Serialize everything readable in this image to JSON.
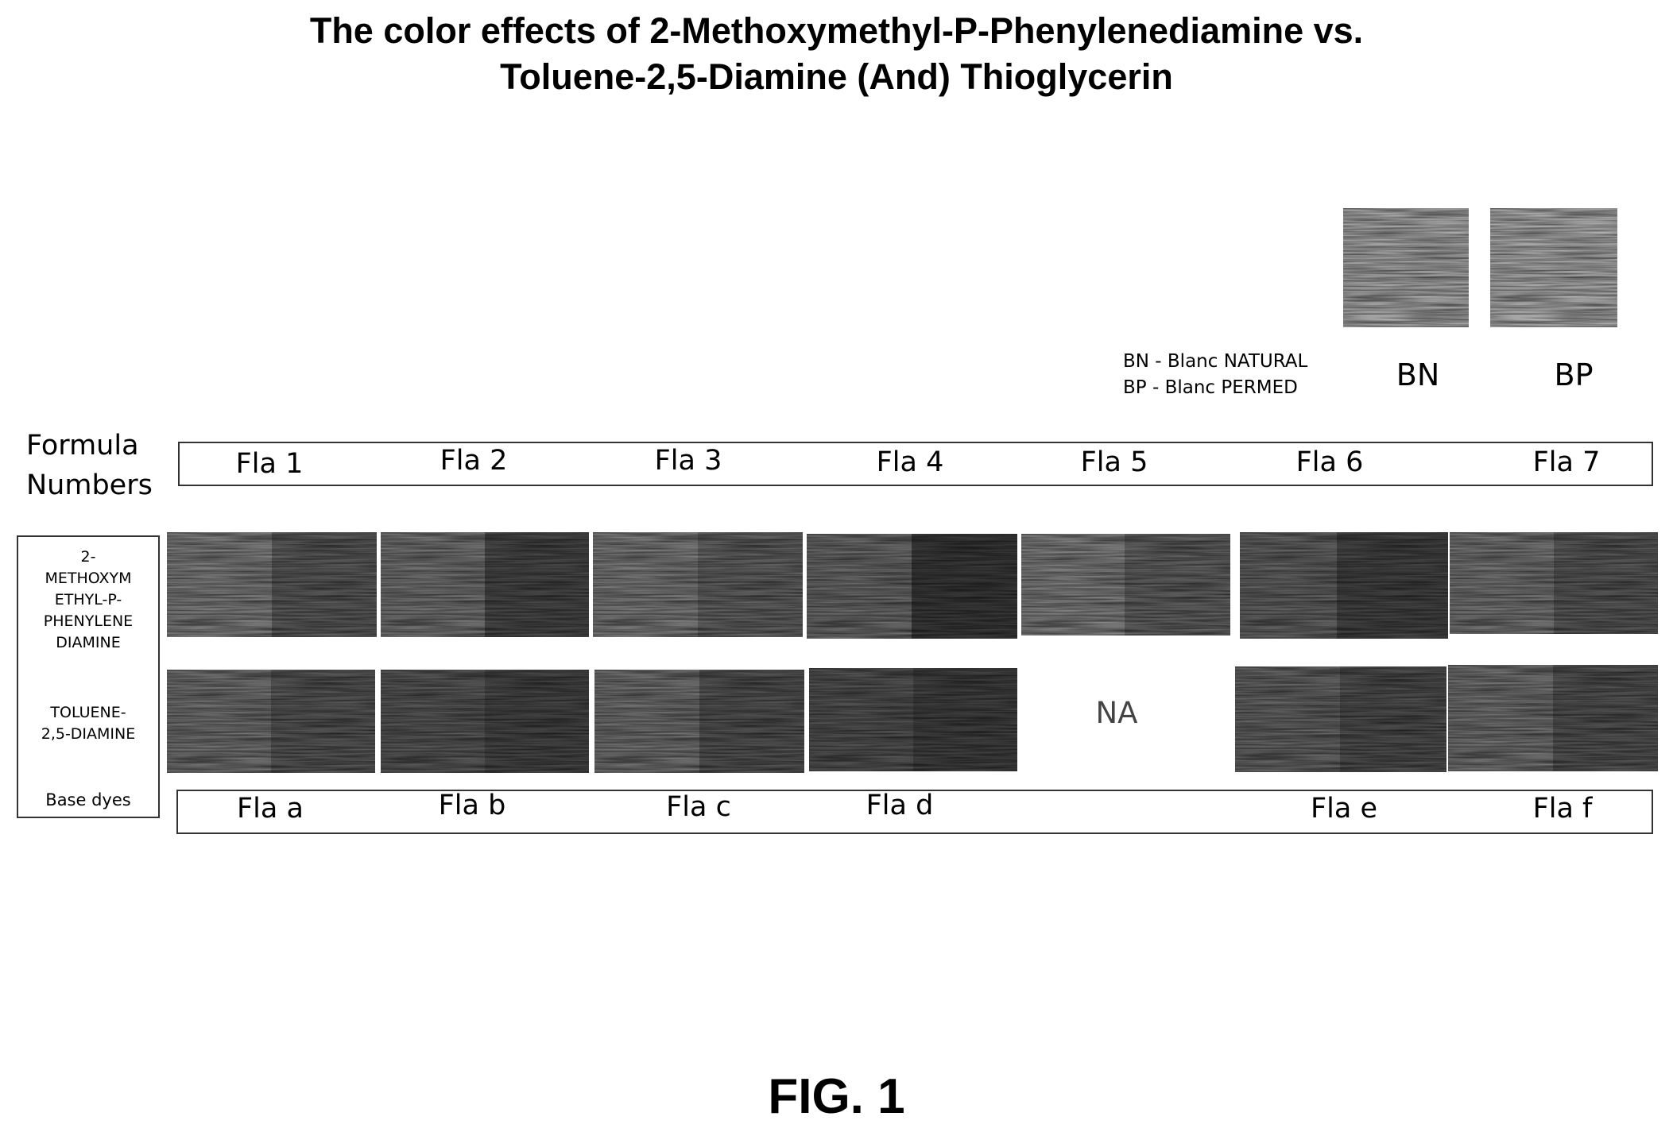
{
  "title": {
    "line1": "The color effects of 2-Methoxymethyl-P-Phenylenediamine vs.",
    "line2": "Toluene-2,5-Diamine (And) Thioglycerin"
  },
  "legend": {
    "bn": "BN - Blanc NATURAL",
    "bp": "BP - Blanc PERMED"
  },
  "references": [
    {
      "label": "BN",
      "tone": "#b4b4b4"
    },
    {
      "label": "BP",
      "tone": "#b9b9b9"
    }
  ],
  "formula_numbers_title": {
    "line1": "Formula",
    "line2": "Numbers"
  },
  "formula_numbers": [
    "Fla 1",
    "Fla 2",
    "Fla 3",
    "Fla 4",
    "Fla 5",
    "Fla 6",
    "Fla 7"
  ],
  "side_labels": {
    "row1": [
      "2-",
      "METHOXYM",
      "ETHYL-P-",
      "PHENYLENE",
      "DIAMINE"
    ],
    "row2": [
      "TOLUENE-",
      "2,5-DIAMINE"
    ],
    "row3": "Base dyes"
  },
  "base_dyes": [
    "Fla a",
    "Fla  b",
    "Fla c",
    "Fla d",
    "Fla e",
    "Fla f"
  ],
  "na_label": "NA",
  "row1_tones": [
    [
      "#888888",
      "#626262"
    ],
    [
      "#7c7c7c",
      "#4e4e4e"
    ],
    [
      "#858585",
      "#6a6a6a"
    ],
    [
      "#727272",
      "#3e3e3e"
    ],
    [
      "#8a8a8a",
      "#6a6a6a"
    ],
    [
      "#6a6a6a",
      "#494949"
    ],
    [
      "#7e7e7e",
      "#606060"
    ]
  ],
  "row2_tones": [
    [
      "#7a7a7a",
      "#5e5e5e"
    ],
    [
      "#5e5e5e",
      "#4c4c4c"
    ],
    [
      "#7a7a7a",
      "#5a5a5a"
    ],
    [
      "#595959",
      "#464646"
    ],
    [
      "#6c6c6c",
      "#555555"
    ],
    [
      "#7a7a7a",
      "#5a5a5a"
    ]
  ],
  "figure_label": "FIG. 1"
}
